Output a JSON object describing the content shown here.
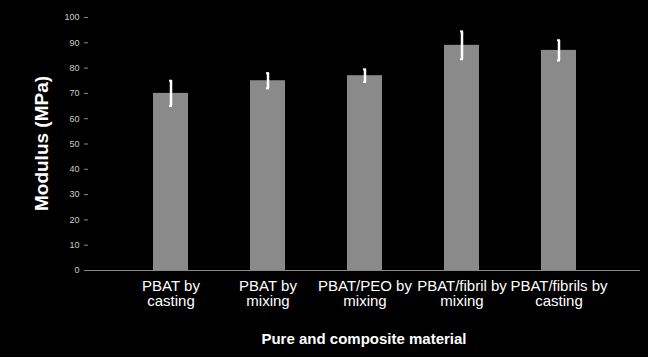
{
  "chart_data": {
    "type": "bar",
    "x_label": "Pure and composite material",
    "y_label": "Modulus (MPa)",
    "categories": [
      "PBAT by casting",
      "PBAT by mixing",
      "PBAT/PEO by mixing",
      "PBAT/fibril by mixing",
      "PBAT/fibrils by casting"
    ],
    "values": [
      70,
      75,
      77,
      89,
      87
    ],
    "errors": [
      5,
      3,
      2.5,
      5.5,
      4
    ],
    "color": "#8a8a8a",
    "ylim": [
      0,
      100
    ],
    "yticks": [
      0,
      10,
      20,
      30,
      40,
      50,
      60,
      70,
      80,
      90,
      100
    ],
    "grid": false
  }
}
